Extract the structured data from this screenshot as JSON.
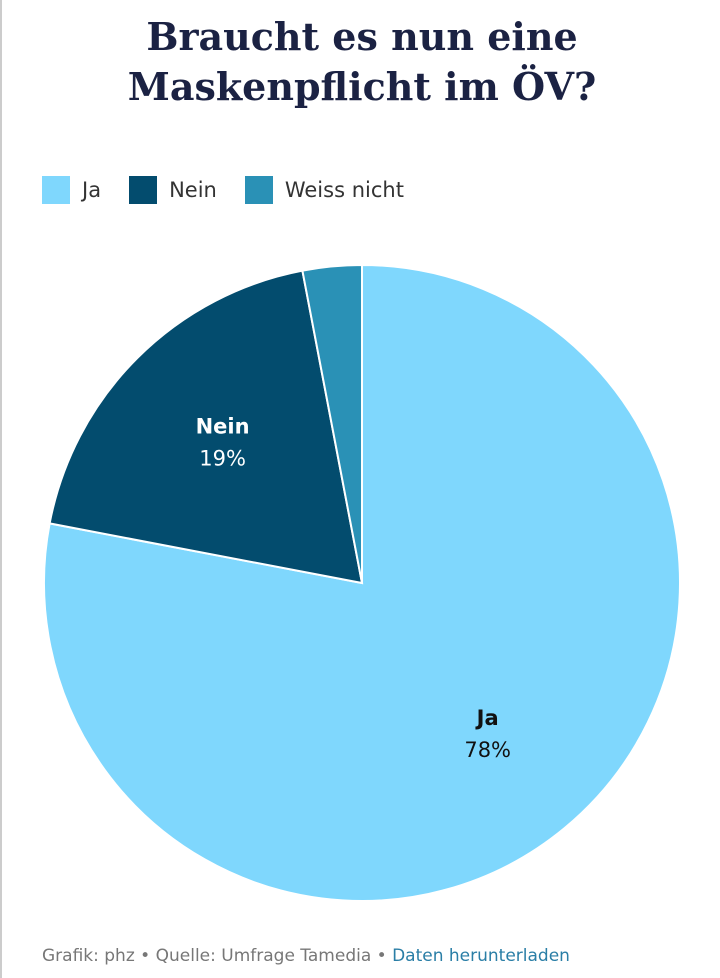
{
  "chart_data": {
    "type": "pie",
    "title": "Braucht es nun eine Maskenpflicht im ÖV?",
    "categories": [
      "Ja",
      "Nein",
      "Weiss nicht"
    ],
    "values": [
      78,
      19,
      3
    ],
    "value_labels": [
      "78%",
      "19%",
      null
    ],
    "colors": [
      "#7fd7fd",
      "#034c6e",
      "#2a91b6"
    ]
  },
  "footer": {
    "credit": "Grafik: phz",
    "source": "Quelle: Umfrage Tamedia",
    "link": "Daten herunterladen"
  }
}
